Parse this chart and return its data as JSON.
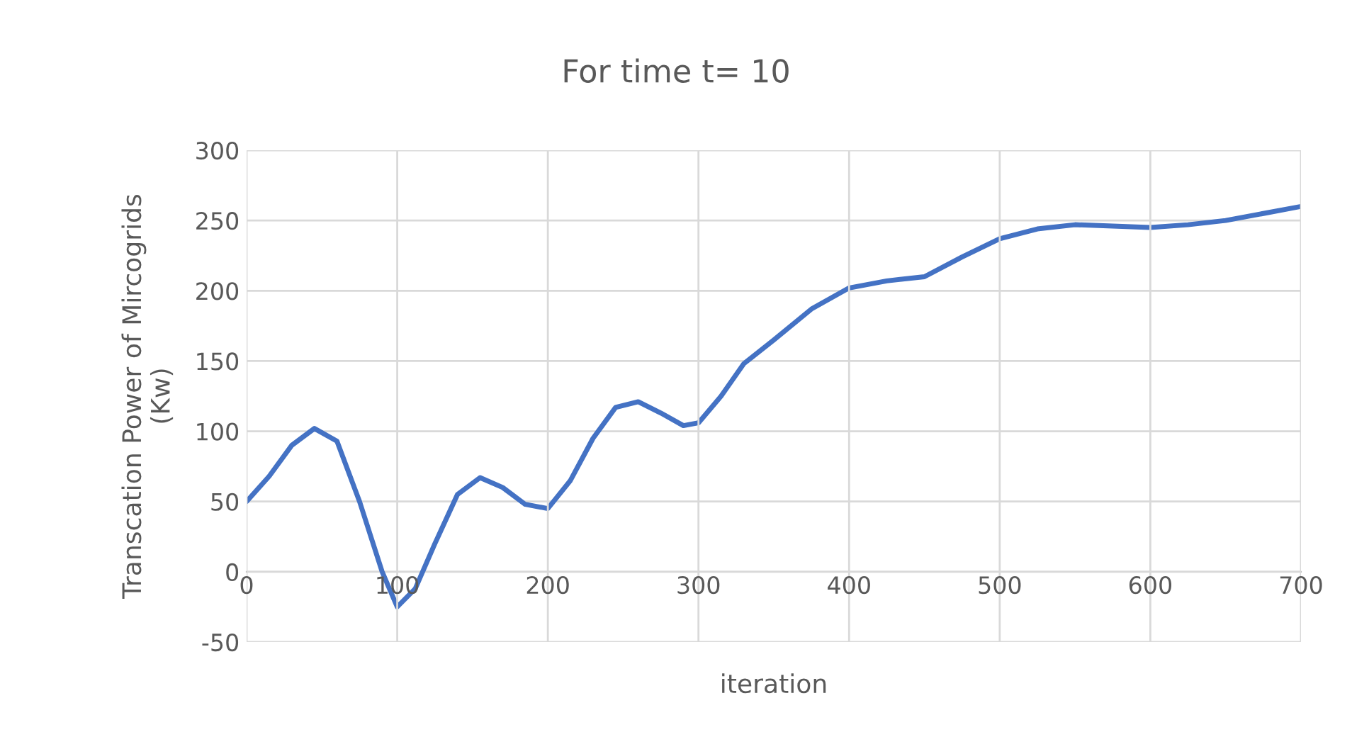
{
  "chart_data": {
    "type": "line",
    "title": "For time t= 10",
    "xlabel": "iteration",
    "ylabel": "Transcation Power of Mircogrids\n(Kw)",
    "x": [
      0,
      15,
      30,
      45,
      60,
      75,
      90,
      100,
      112,
      125,
      140,
      155,
      170,
      185,
      200,
      215,
      230,
      245,
      260,
      275,
      290,
      300,
      315,
      330,
      350,
      375,
      400,
      425,
      450,
      475,
      500,
      525,
      550,
      575,
      600,
      625,
      650,
      675,
      700
    ],
    "series": [
      {
        "color": "#4472c4",
        "values": [
          50,
          68,
          90,
          102,
          93,
          50,
          0,
          -25,
          -12,
          20,
          55,
          67,
          60,
          48,
          45,
          65,
          95,
          117,
          121,
          113,
          104,
          106,
          125,
          148,
          165,
          187,
          202,
          207,
          210,
          224,
          237,
          244,
          247,
          246,
          245,
          247,
          250,
          255,
          260
        ]
      }
    ],
    "xlim": [
      0,
      700
    ],
    "xticks": [
      0,
      100,
      200,
      300,
      400,
      500,
      600,
      700
    ],
    "ylim": [
      -50,
      300
    ],
    "yticks": [
      -50,
      0,
      50,
      100,
      150,
      200,
      250,
      300
    ],
    "grid": true,
    "legend": false,
    "marker": "none",
    "line_style": "solid"
  }
}
